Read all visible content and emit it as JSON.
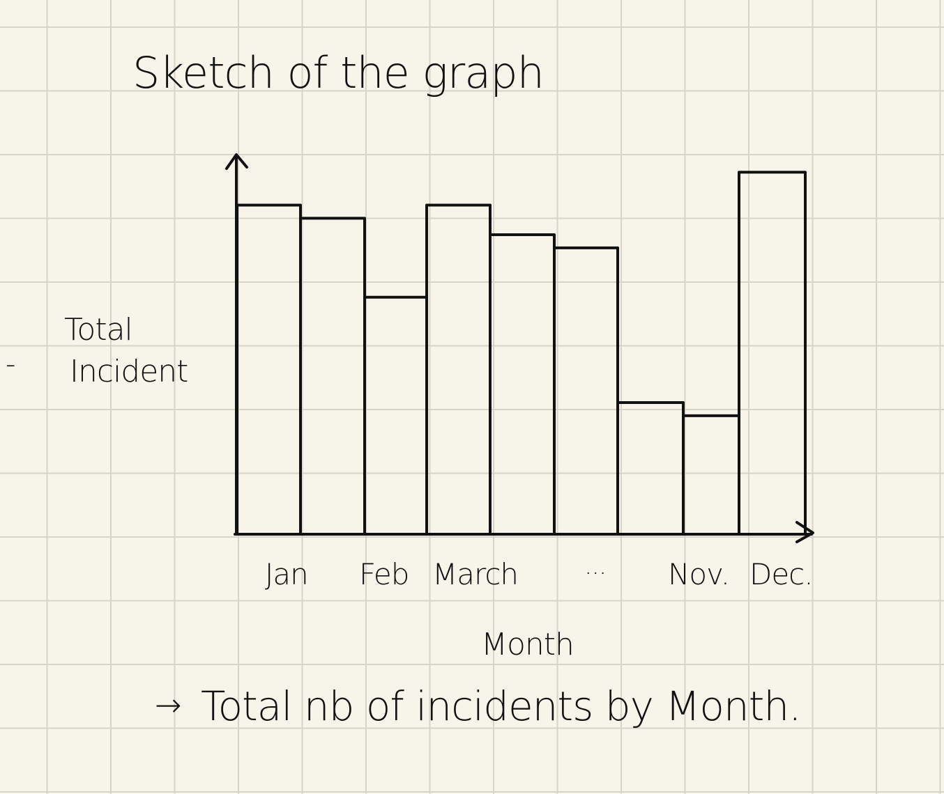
{
  "page": {
    "title": "Sketch of the graph",
    "bullet": "-",
    "caption": "Total nb of incidents by Month.",
    "caption_arrow": "→"
  },
  "colors": {
    "paper": "#f7f5ea",
    "grid": "#d6d4c6",
    "ink": "#111111"
  },
  "chart_data": {
    "type": "bar",
    "title": "Sketch of the graph",
    "ylabel_lines": [
      "Total",
      "Incident"
    ],
    "xlabel": "Month",
    "tick_labels": [
      "Jan",
      "Feb",
      "March",
      "...",
      "Nov.",
      "Dec."
    ],
    "categories": [
      "Jan",
      "Feb",
      "March",
      "",
      "",
      "",
      "",
      "Nov.",
      "Dec."
    ],
    "values": [
      100,
      96,
      72,
      100,
      91,
      87,
      40,
      36,
      110
    ],
    "ylim": [
      0,
      120
    ],
    "grid": false,
    "axis_arrows": true
  }
}
